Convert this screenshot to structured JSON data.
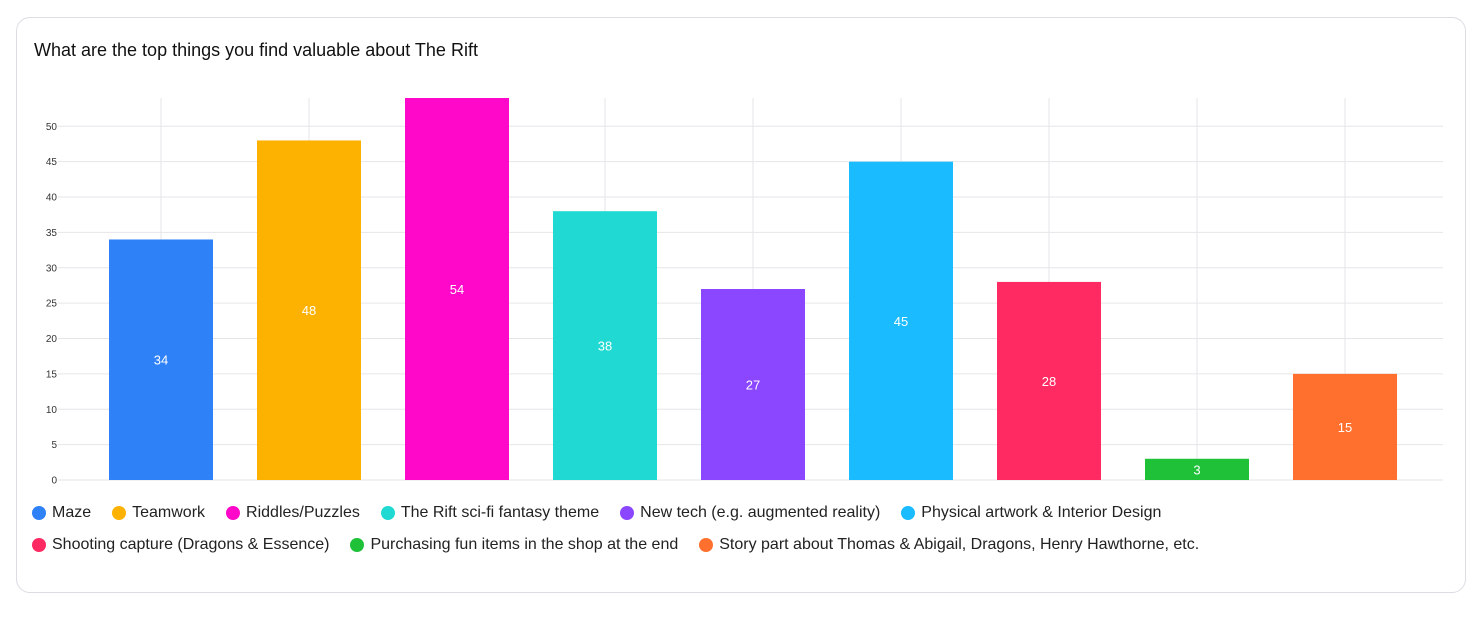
{
  "card": {
    "title": "What are the top things you find valuable about The Rift"
  },
  "chart_data": {
    "type": "bar",
    "title": "What are the top things you find valuable about The Rift",
    "categories": [
      "Maze",
      "Teamwork",
      "Riddles/Puzzles",
      "The Rift sci-fi fantasy theme",
      "New tech (e.g. augmented reality)",
      "Physical artwork & Interior Design",
      "Shooting capture (Dragons & Essence)",
      "Purchasing fun items in the shop at the end",
      "Story part about Thomas & Abigail, Dragons, Henry Hawthorne, etc."
    ],
    "values": [
      34,
      48,
      54,
      38,
      27,
      45,
      28,
      3,
      15
    ],
    "colors": [
      "#2f81f7",
      "#fdb202",
      "#ff08c9",
      "#20d9d2",
      "#8b46ff",
      "#1abcff",
      "#ff2a62",
      "#1fc139",
      "#ff702e"
    ],
    "data_labels": [
      "34",
      "48",
      "54",
      "38",
      "27",
      "45",
      "28",
      "3",
      "15"
    ],
    "yticks": [
      "0",
      "5",
      "10",
      "15",
      "20",
      "25",
      "30",
      "35",
      "40",
      "45",
      "50"
    ],
    "ylim": [
      0,
      54
    ],
    "grid": true,
    "legend_position": "bottom"
  },
  "legend": {
    "rows": [
      [
        0,
        1,
        2,
        3,
        4,
        5
      ],
      [
        6,
        7,
        8
      ]
    ]
  }
}
